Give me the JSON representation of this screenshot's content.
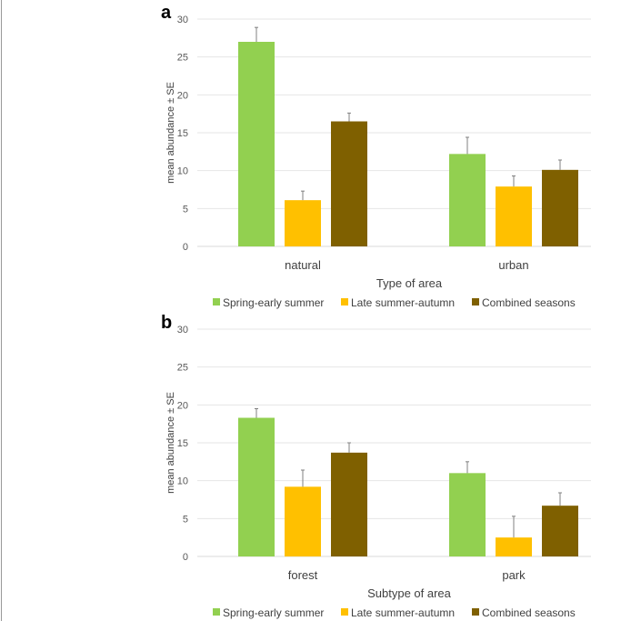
{
  "chart_data": [
    {
      "type": "bar",
      "panel_label": "a",
      "categories": [
        "natural",
        "urban"
      ],
      "xlabel": "Type of area",
      "ylabel": "mean abundance ± SE",
      "ylim": [
        0,
        30
      ],
      "yticks": [
        0,
        5,
        10,
        15,
        20,
        25,
        30
      ],
      "grid": true,
      "legend": "bottom",
      "series": [
        {
          "name": "Spring-early summer",
          "color": "#92d050",
          "values": [
            27.0,
            12.2
          ],
          "se": [
            1.9,
            2.2
          ]
        },
        {
          "name": "Late summer-autumn",
          "color": "#ffc000",
          "values": [
            6.1,
            7.9
          ],
          "se": [
            1.2,
            1.4
          ]
        },
        {
          "name": "Combined seasons",
          "color": "#7f6000",
          "values": [
            16.5,
            10.1
          ],
          "se": [
            1.1,
            1.3
          ]
        }
      ]
    },
    {
      "type": "bar",
      "panel_label": "b",
      "categories": [
        "forest",
        "park"
      ],
      "xlabel": "Subtype of area",
      "ylabel": "mean abundance ± SE",
      "ylim": [
        0,
        30
      ],
      "yticks": [
        0,
        5,
        10,
        15,
        20,
        25,
        30
      ],
      "grid": true,
      "legend": "bottom",
      "series": [
        {
          "name": "Spring-early summer",
          "color": "#92d050",
          "values": [
            18.3,
            11.0
          ],
          "se": [
            1.2,
            1.5
          ]
        },
        {
          "name": "Late summer-autumn",
          "color": "#ffc000",
          "values": [
            9.2,
            2.5
          ],
          "se": [
            2.2,
            2.8
          ]
        },
        {
          "name": "Combined seasons",
          "color": "#7f6000",
          "values": [
            13.7,
            6.7
          ],
          "se": [
            1.3,
            1.7
          ]
        }
      ]
    }
  ]
}
